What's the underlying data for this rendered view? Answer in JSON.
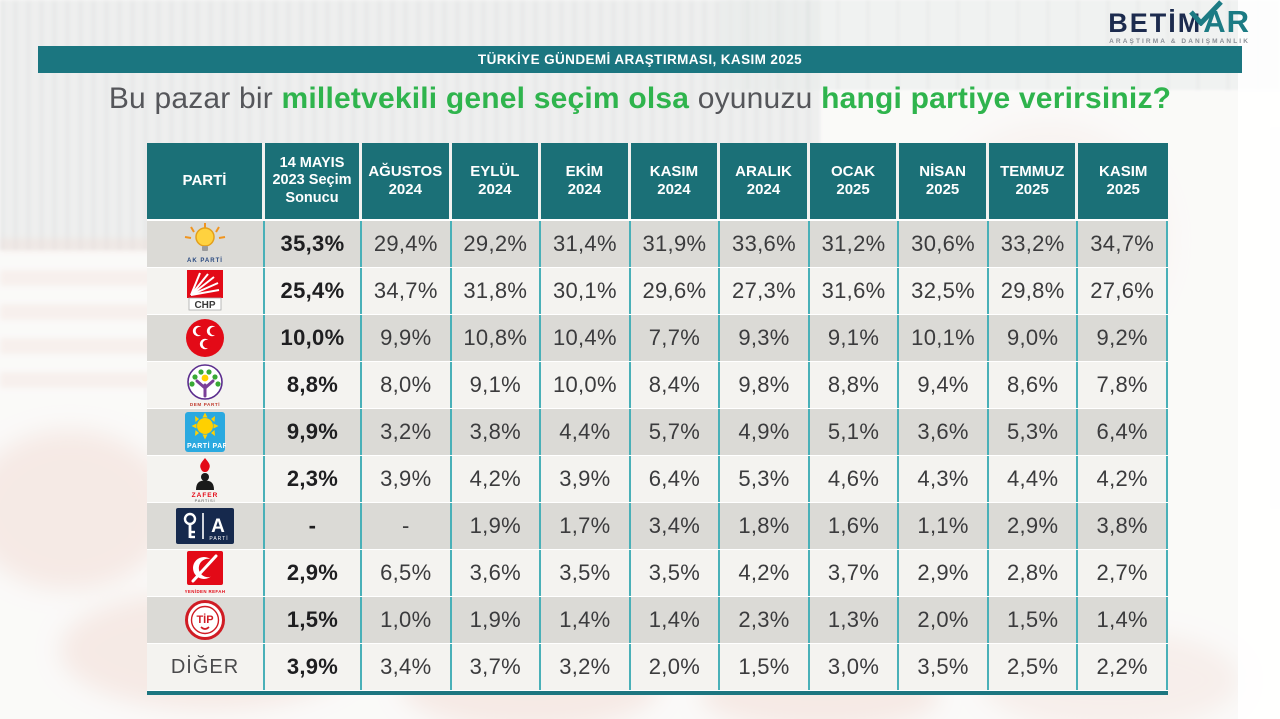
{
  "brand": {
    "name_primary": "BETİM",
    "name_accent": "AR",
    "tagline": "ARAŞTIRMA & DANIŞMANLIK"
  },
  "banner": {
    "text": "TÜRKİYE GÜNDEMİ ARAŞTIRMASI, KASIM 2025"
  },
  "question": {
    "part1": "Bu pazar bir ",
    "highlight1": "milletvekili genel seçim olsa",
    "part2": " oyunuzu ",
    "highlight2": "hangi partiye verirsiniz?"
  },
  "colors": {
    "teal": "#1b7680",
    "header_teal": "#1b7077",
    "grid_teal": "#49b0b8",
    "green": "#2fb44d",
    "row_gray": "#dbdad6",
    "row_light": "#f4f3f0"
  },
  "chart_data": {
    "type": "table",
    "title": "Bu pazar bir milletvekili genel seçim olsa oyunuzu hangi partiye verirsiniz?",
    "columns": [
      [
        "PARTİ"
      ],
      [
        "14 MAYIS",
        "2023 Seçim",
        "Sonucu"
      ],
      [
        "AĞUSTOS",
        "2024"
      ],
      [
        "EYLÜL",
        "2024"
      ],
      [
        "EKİM",
        "2024"
      ],
      [
        "KASIM",
        "2024"
      ],
      [
        "ARALIK",
        "2024"
      ],
      [
        "OCAK",
        "2025"
      ],
      [
        "NİSAN",
        "2025"
      ],
      [
        "TEMMUZ",
        "2025"
      ],
      [
        "KASIM",
        "2025"
      ]
    ],
    "rows": [
      {
        "party": "AK PARTİ",
        "icon": "akparti-logo-icon",
        "caption": "AK PARTİ",
        "values": [
          "35,3%",
          "29,4%",
          "29,2%",
          "31,4%",
          "31,9%",
          "33,6%",
          "31,2%",
          "30,6%",
          "33,2%",
          "34,7%"
        ]
      },
      {
        "party": "CHP",
        "icon": "chp-logo-icon",
        "caption": "CHP",
        "values": [
          "25,4%",
          "34,7%",
          "31,8%",
          "30,1%",
          "29,6%",
          "27,3%",
          "31,6%",
          "32,5%",
          "29,8%",
          "27,6%"
        ]
      },
      {
        "party": "MHP",
        "icon": "mhp-logo-icon",
        "caption": "",
        "values": [
          "10,0%",
          "9,9%",
          "10,8%",
          "10,4%",
          "7,7%",
          "9,3%",
          "9,1%",
          "10,1%",
          "9,0%",
          "9,2%"
        ]
      },
      {
        "party": "DEM PARTİ",
        "icon": "demparti-logo-icon",
        "caption": "DEM PARTİ",
        "values": [
          "8,8%",
          "8,0%",
          "9,1%",
          "10,0%",
          "8,4%",
          "9,8%",
          "8,8%",
          "9,4%",
          "8,6%",
          "7,8%"
        ]
      },
      {
        "party": "İYİ PARTİ",
        "icon": "iyiparti-logo-icon",
        "caption": "İYİ PARTİ",
        "values": [
          "9,9%",
          "3,2%",
          "3,8%",
          "4,4%",
          "5,7%",
          "4,9%",
          "5,1%",
          "3,6%",
          "5,3%",
          "6,4%"
        ]
      },
      {
        "party": "ZAFER PARTİSİ",
        "icon": "zaferpartisi-logo-icon",
        "caption": "ZAFER",
        "values": [
          "2,3%",
          "3,9%",
          "4,2%",
          "3,9%",
          "6,4%",
          "5,3%",
          "4,6%",
          "4,3%",
          "4,4%",
          "4,2%"
        ]
      },
      {
        "party": "ANAHTAR PARTİ",
        "icon": "aparti-logo-icon",
        "caption": "A",
        "values": [
          "-",
          "-",
          "1,9%",
          "1,7%",
          "3,4%",
          "1,8%",
          "1,6%",
          "1,1%",
          "2,9%",
          "3,8%"
        ]
      },
      {
        "party": "YENİDEN REFAH",
        "icon": "yenidenrefah-logo-icon",
        "caption": "YENİDEN REFAH",
        "values": [
          "2,9%",
          "6,5%",
          "3,6%",
          "3,5%",
          "3,5%",
          "4,2%",
          "3,7%",
          "2,9%",
          "2,8%",
          "2,7%"
        ]
      },
      {
        "party": "TİP",
        "icon": "tip-logo-icon",
        "caption": "TİP",
        "values": [
          "1,5%",
          "1,0%",
          "1,9%",
          "1,4%",
          "1,4%",
          "2,3%",
          "1,3%",
          "2,0%",
          "1,5%",
          "1,4%"
        ]
      },
      {
        "party": "DİĞER",
        "icon": null,
        "caption": "DİĞER",
        "values": [
          "3,9%",
          "3,4%",
          "3,7%",
          "3,2%",
          "2,0%",
          "1,5%",
          "3,0%",
          "3,5%",
          "2,5%",
          "2,2%"
        ]
      }
    ]
  }
}
